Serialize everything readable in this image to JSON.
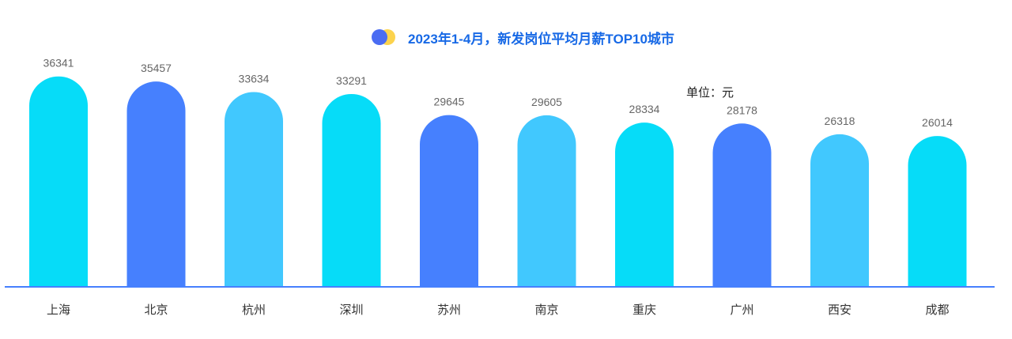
{
  "chart_data": {
    "type": "bar",
    "title": "2023年1-4月，新发岗位平均月薪TOP10城市",
    "unit_label": "单位：元",
    "categories": [
      "上海",
      "北京",
      "杭州",
      "深圳",
      "苏州",
      "南京",
      "重庆",
      "广州",
      "西安",
      "成都"
    ],
    "values": [
      36341,
      35457,
      33634,
      33291,
      29645,
      29605,
      28334,
      28178,
      26318,
      26014
    ],
    "bar_colors": [
      "#06dcf8",
      "#4680fe",
      "#41c8fe",
      "#06dcf8",
      "#4680fe",
      "#41c8fe",
      "#06dcf8",
      "#4680fe",
      "#41c8fe",
      "#06dcf8"
    ],
    "baseline_color": "#4680fe",
    "legend_icon_colors": [
      "#fcd34d",
      "#4a6cf2"
    ],
    "xlabel": "",
    "ylabel": "",
    "grid": false
  }
}
